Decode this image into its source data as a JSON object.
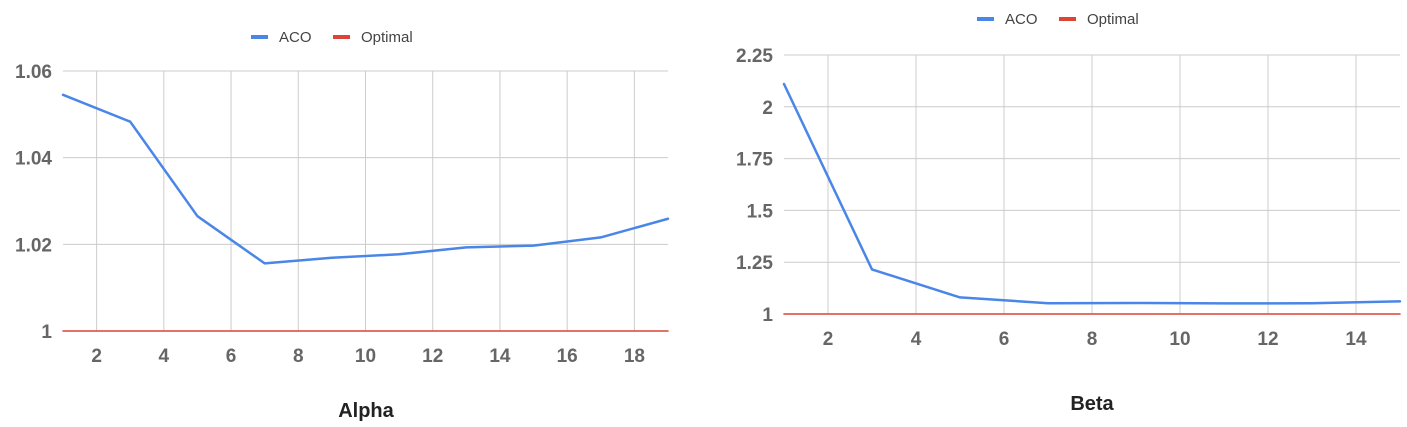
{
  "chart_data": [
    {
      "type": "line",
      "title": "",
      "xlabel": "Alpha",
      "ylabel": "",
      "xlim": [
        1,
        19
      ],
      "ylim": [
        1,
        1.06
      ],
      "x_ticks": [
        2,
        4,
        6,
        8,
        10,
        12,
        14,
        16,
        18
      ],
      "y_ticks": [
        1,
        1.02,
        1.04,
        1.06
      ],
      "y_tick_labels": [
        "1",
        "1.02",
        "1.04",
        "1.06"
      ],
      "grid": true,
      "legend_position": "top",
      "series": [
        {
          "name": "ACO",
          "color": "#4a86e8",
          "x": [
            1,
            3,
            5,
            7,
            9,
            11,
            13,
            15,
            17,
            19
          ],
          "y": [
            1.0545,
            1.0483,
            1.0265,
            1.0156,
            1.0169,
            1.0177,
            1.0193,
            1.0197,
            1.0216,
            1.0259
          ]
        },
        {
          "name": "Optimal",
          "color": "#db4437",
          "x": [
            1,
            19
          ],
          "y": [
            1,
            1
          ]
        }
      ]
    },
    {
      "type": "line",
      "title": "",
      "xlabel": "Beta",
      "ylabel": "",
      "xlim": [
        1,
        15
      ],
      "ylim": [
        1,
        2.25
      ],
      "x_ticks": [
        2,
        4,
        6,
        8,
        10,
        12,
        14
      ],
      "y_ticks": [
        1,
        1.25,
        1.5,
        1.75,
        2,
        2.25
      ],
      "y_tick_labels": [
        "1",
        "1.25",
        "1.5",
        "1.75",
        "2",
        "2.25"
      ],
      "grid": true,
      "legend_position": "top",
      "series": [
        {
          "name": "ACO",
          "color": "#4a86e8",
          "x": [
            1,
            3,
            5,
            7,
            9,
            11,
            13,
            15
          ],
          "y": [
            2.11,
            1.215,
            1.08,
            1.052,
            1.053,
            1.051,
            1.052,
            1.061
          ]
        },
        {
          "name": "Optimal",
          "color": "#db4437",
          "x": [
            1,
            15
          ],
          "y": [
            1,
            1
          ]
        }
      ]
    }
  ]
}
